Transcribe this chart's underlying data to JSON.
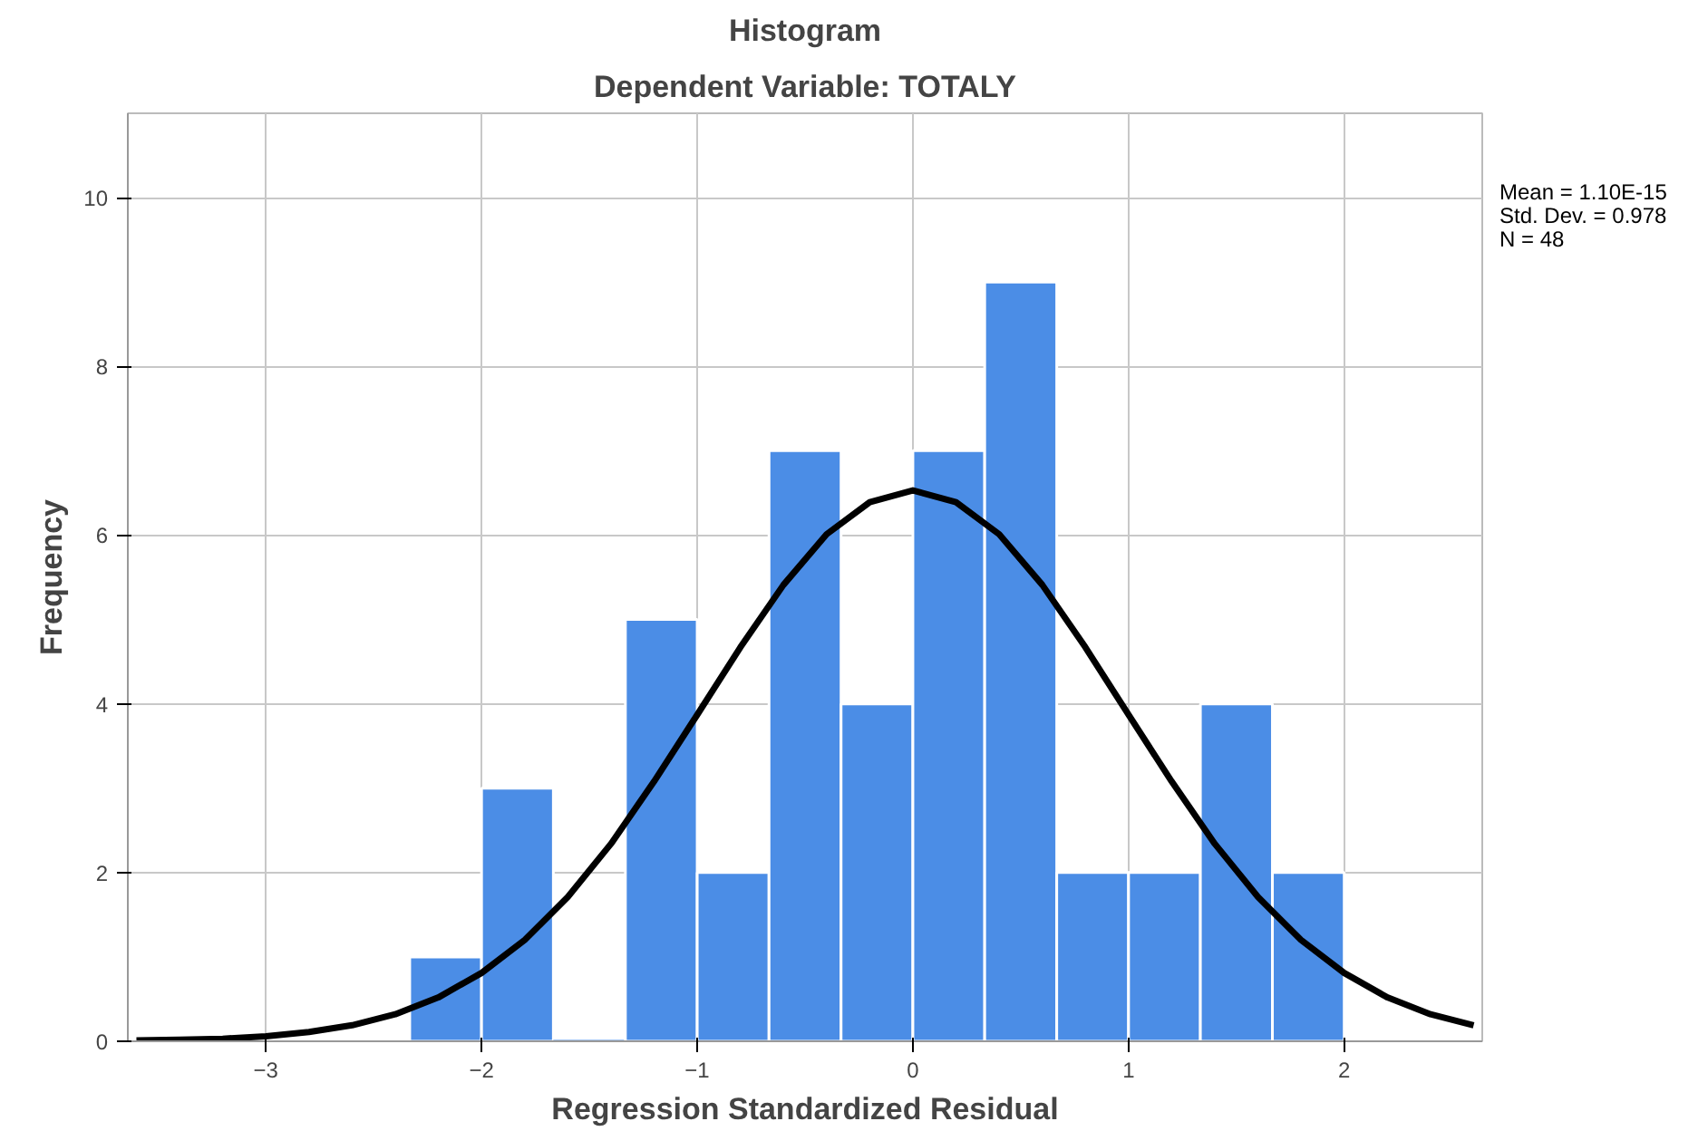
{
  "chart_data": {
    "type": "histogram",
    "title": "Histogram",
    "subtitle": "Dependent Variable: TOTALY",
    "xlabel": "Regression Standardized Residual",
    "ylabel": "Frequency",
    "bins": [
      -2.333,
      -2.0,
      -1.667,
      -1.333,
      -1.0,
      -0.667,
      -0.333,
      0.0,
      0.333,
      0.667,
      1.0,
      1.333,
      1.667,
      2.0
    ],
    "values": [
      1,
      3,
      0,
      5,
      2,
      7,
      4,
      7,
      9,
      2,
      2,
      4,
      2
    ],
    "color": "#4b8de6",
    "series": [
      {
        "type": "line",
        "color": "#000000",
        "x": [
          -3.6,
          -3.4,
          -3.2,
          -3.0,
          -2.8,
          -2.6,
          -2.4,
          -2.2,
          -2.0,
          -1.8,
          -1.6,
          -1.4,
          -1.2,
          -1.0,
          -0.8,
          -0.6,
          -0.4,
          -0.2,
          0.0,
          0.2,
          0.4,
          0.6,
          0.8,
          1.0,
          1.2,
          1.4,
          1.6,
          1.8,
          2.0,
          2.2,
          2.4,
          2.6
        ],
        "values": [
          0.01,
          0.02,
          0.03,
          0.06,
          0.11,
          0.19,
          0.32,
          0.52,
          0.81,
          1.2,
          1.71,
          2.34,
          3.08,
          3.87,
          4.67,
          5.41,
          6.01,
          6.39,
          6.53,
          6.39,
          6.01,
          5.41,
          4.67,
          3.87,
          3.08,
          2.34,
          1.71,
          1.2,
          0.81,
          0.52,
          0.32,
          0.19
        ]
      }
    ],
    "xlim": [
      -3.64,
      2.64
    ],
    "ylim": [
      0,
      11
    ],
    "xticks": [
      -3,
      -2,
      -1,
      0,
      1,
      2
    ],
    "yticks": [
      0,
      2,
      4,
      6,
      8,
      10
    ],
    "grid": true,
    "annotations": [
      "Mean = 1.10E-15",
      "Std. Dev. = 0.978",
      "N = 48"
    ]
  }
}
